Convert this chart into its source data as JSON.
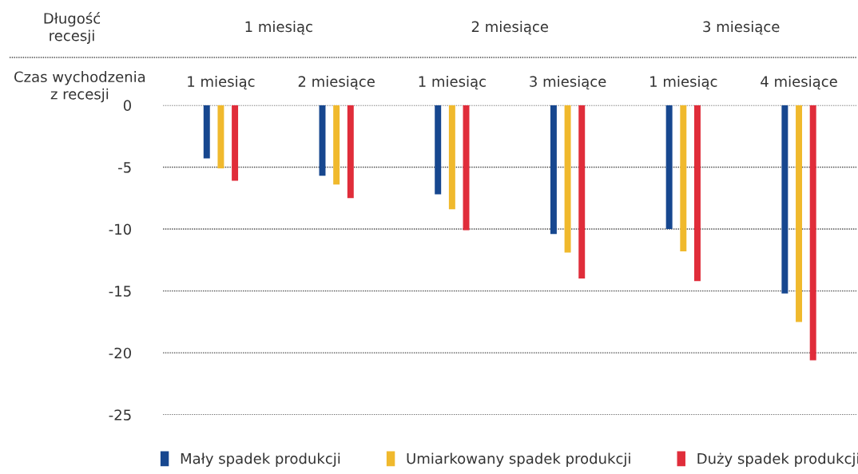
{
  "chart_data": {
    "type": "bar",
    "xlabel": "Czas wychodzenia\nz recesji",
    "categories": [
      "1 miesiąc",
      "2 miesiące",
      "1 miesiąc",
      "3 miesiące",
      "1 miesiąc",
      "4 miesiące"
    ],
    "series": [
      {
        "name": "Mały spadek produkcji",
        "color": "#17478f",
        "values": [
          -4.3,
          -5.7,
          -7.2,
          -10.4,
          -10.0,
          -15.2
        ]
      },
      {
        "name": "Umiarkowany spadek produkcji",
        "color": "#f0b92d",
        "values": [
          -5.1,
          -6.4,
          -8.4,
          -11.9,
          -11.8,
          -17.5
        ]
      },
      {
        "name": "Duży spadek produkcji",
        "color": "#e02d3a",
        "values": [
          -6.1,
          -7.5,
          -10.1,
          -14.0,
          -14.2,
          -20.6
        ]
      }
    ],
    "ylim": [
      -25,
      0
    ],
    "yticks": [
      0,
      -5,
      -10,
      -15,
      -20,
      -25
    ],
    "grid": "y",
    "legend": "bottom",
    "annotations": [
      "Długość\nrecesji",
      "1 miesiąc",
      "2 miesiące",
      "3 miesiące"
    ]
  }
}
